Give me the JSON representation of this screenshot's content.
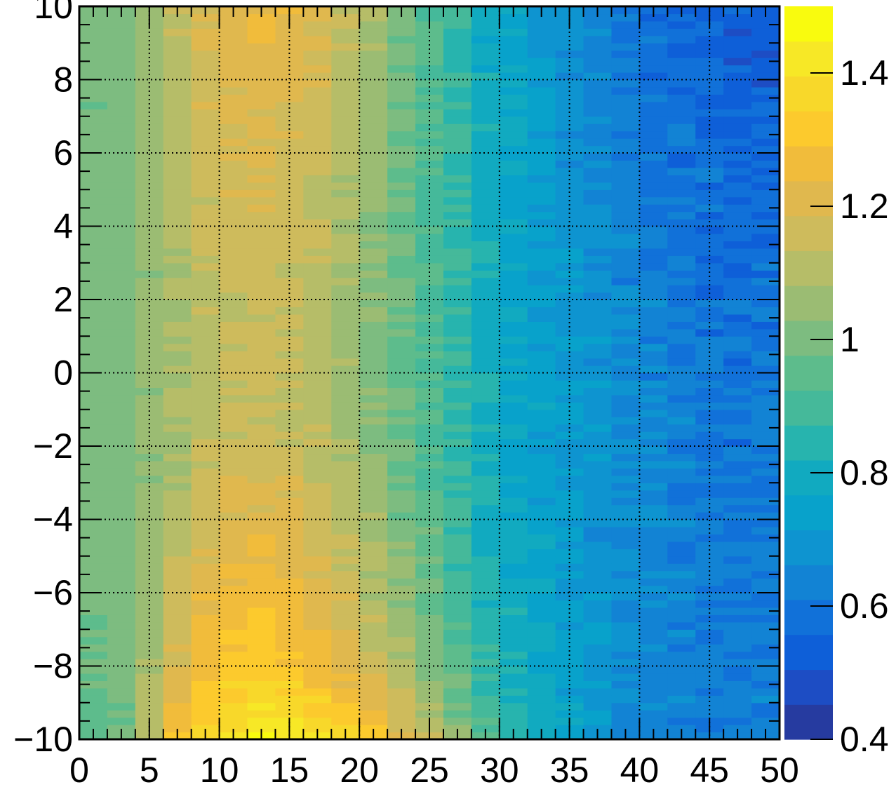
{
  "chart_data": {
    "type": "heatmap",
    "title": "",
    "xlabel": "",
    "ylabel": "",
    "xlim": [
      0,
      50
    ],
    "ylim": [
      -10,
      10
    ],
    "x_ticks": [
      0,
      5,
      10,
      15,
      20,
      25,
      30,
      35,
      40,
      45,
      50
    ],
    "y_ticks": [
      -10,
      -8,
      -6,
      -4,
      -2,
      0,
      2,
      4,
      6,
      8,
      10
    ],
    "x_tick_labels": [
      "0",
      "5",
      "10",
      "15",
      "20",
      "25",
      "30",
      "35",
      "40",
      "45",
      "50"
    ],
    "y_tick_labels": [
      "−10",
      "−8",
      "−6",
      "−4",
      "−2",
      "0",
      "2",
      "4",
      "6",
      "8",
      "10"
    ],
    "grid": true,
    "colorbar": {
      "zlim": [
        0.4,
        1.5
      ],
      "ticks": [
        0.4,
        0.6,
        0.8,
        1.0,
        1.2,
        1.4
      ],
      "tick_labels": [
        "0.4",
        "0.6",
        "0.8",
        "1",
        "1.2",
        "1.4"
      ],
      "palette": [
        "#263ba0",
        "#1d4dc4",
        "#0e5fd8",
        "#1171d9",
        "#1283d4",
        "#0e94d0",
        "#08a2cb",
        "#11aac0",
        "#27b4ae",
        "#45b99a",
        "#5dbc8c",
        "#7dbc80",
        "#9bbc73",
        "#b6bd68",
        "#cebb5c",
        "#e0b84e",
        "#f1bc3b",
        "#fcca2d",
        "#f8d82a",
        "#f7e826",
        "#f9fb0e"
      ]
    },
    "x_bin_width": 2,
    "y_bin_width": 0.2,
    "value_profile": {
      "x_centers": [
        1,
        3,
        5,
        7,
        9,
        11,
        13,
        15,
        17,
        19,
        21,
        23,
        25,
        27,
        29,
        31,
        33,
        35,
        37,
        39,
        41,
        43,
        45,
        47,
        49
      ],
      "y_rows": [
        -9.9,
        -9.0,
        -8.0,
        -7.0,
        -6.0,
        -5.0,
        -4.0,
        -3.0,
        -2.0,
        0.0,
        2.0,
        4.0,
        6.0,
        8.0,
        9.9
      ],
      "values": [
        [
          0.96,
          0.98,
          1.12,
          1.28,
          1.37,
          1.42,
          1.44,
          1.43,
          1.4,
          1.36,
          1.3,
          1.22,
          1.14,
          1.04,
          0.94,
          0.86,
          0.8,
          0.75,
          0.7,
          0.66,
          0.64,
          0.62,
          0.62,
          0.62,
          0.62
        ],
        [
          0.96,
          0.99,
          1.1,
          1.24,
          1.32,
          1.36,
          1.38,
          1.37,
          1.33,
          1.28,
          1.22,
          1.14,
          1.06,
          0.97,
          0.89,
          0.83,
          0.78,
          0.74,
          0.7,
          0.67,
          0.65,
          0.63,
          0.62,
          0.62,
          0.62
        ],
        [
          0.97,
          0.99,
          1.08,
          1.2,
          1.28,
          1.32,
          1.33,
          1.31,
          1.27,
          1.22,
          1.16,
          1.09,
          1.02,
          0.94,
          0.87,
          0.81,
          0.77,
          0.73,
          0.7,
          0.67,
          0.65,
          0.63,
          0.62,
          0.62,
          0.62
        ],
        [
          0.98,
          1.0,
          1.06,
          1.17,
          1.25,
          1.29,
          1.3,
          1.28,
          1.24,
          1.19,
          1.13,
          1.06,
          0.99,
          0.92,
          0.85,
          0.8,
          0.76,
          0.73,
          0.7,
          0.67,
          0.65,
          0.63,
          0.62,
          0.61,
          0.61
        ],
        [
          0.99,
          1.0,
          1.05,
          1.14,
          1.22,
          1.26,
          1.27,
          1.25,
          1.21,
          1.16,
          1.1,
          1.04,
          0.97,
          0.9,
          0.84,
          0.79,
          0.75,
          0.72,
          0.69,
          0.67,
          0.65,
          0.63,
          0.62,
          0.61,
          0.61
        ],
        [
          1.0,
          1.01,
          1.05,
          1.12,
          1.19,
          1.23,
          1.24,
          1.22,
          1.18,
          1.13,
          1.08,
          1.02,
          0.96,
          0.89,
          0.83,
          0.78,
          0.75,
          0.72,
          0.69,
          0.67,
          0.65,
          0.63,
          0.62,
          0.61,
          0.61
        ],
        [
          1.0,
          1.01,
          1.04,
          1.1,
          1.16,
          1.2,
          1.21,
          1.2,
          1.16,
          1.11,
          1.06,
          1.0,
          0.95,
          0.88,
          0.82,
          0.78,
          0.74,
          0.71,
          0.69,
          0.67,
          0.65,
          0.63,
          0.62,
          0.61,
          0.61
        ],
        [
          1.01,
          1.01,
          1.04,
          1.09,
          1.14,
          1.18,
          1.19,
          1.18,
          1.14,
          1.1,
          1.05,
          0.99,
          0.94,
          0.88,
          0.82,
          0.77,
          0.74,
          0.71,
          0.69,
          0.67,
          0.65,
          0.63,
          0.62,
          0.61,
          0.6
        ],
        [
          1.01,
          1.01,
          1.04,
          1.08,
          1.12,
          1.15,
          1.16,
          1.15,
          1.12,
          1.08,
          1.03,
          0.98,
          0.93,
          0.87,
          0.81,
          0.77,
          0.74,
          0.71,
          0.69,
          0.67,
          0.65,
          0.63,
          0.61,
          0.6,
          0.6
        ],
        [
          1.01,
          1.01,
          1.04,
          1.08,
          1.11,
          1.13,
          1.14,
          1.13,
          1.1,
          1.06,
          1.02,
          0.97,
          0.92,
          0.86,
          0.8,
          0.77,
          0.74,
          0.71,
          0.69,
          0.66,
          0.64,
          0.62,
          0.6,
          0.59,
          0.59
        ],
        [
          1.01,
          1.01,
          1.04,
          1.08,
          1.12,
          1.14,
          1.15,
          1.14,
          1.11,
          1.07,
          1.02,
          0.97,
          0.92,
          0.86,
          0.8,
          0.76,
          0.73,
          0.71,
          0.68,
          0.65,
          0.63,
          0.61,
          0.59,
          0.58,
          0.58
        ],
        [
          1.0,
          1.01,
          1.05,
          1.1,
          1.14,
          1.16,
          1.17,
          1.16,
          1.13,
          1.09,
          1.04,
          0.98,
          0.92,
          0.86,
          0.8,
          0.76,
          0.73,
          0.7,
          0.67,
          0.64,
          0.62,
          0.6,
          0.58,
          0.57,
          0.57
        ],
        [
          0.99,
          1.0,
          1.05,
          1.11,
          1.16,
          1.18,
          1.19,
          1.18,
          1.15,
          1.11,
          1.05,
          0.99,
          0.93,
          0.86,
          0.8,
          0.76,
          0.72,
          0.69,
          0.66,
          0.63,
          0.6,
          0.58,
          0.57,
          0.56,
          0.56
        ],
        [
          0.99,
          1.0,
          1.05,
          1.12,
          1.18,
          1.2,
          1.21,
          1.2,
          1.17,
          1.12,
          1.06,
          1.0,
          0.93,
          0.86,
          0.79,
          0.75,
          0.71,
          0.68,
          0.65,
          0.62,
          0.59,
          0.57,
          0.55,
          0.54,
          0.54
        ],
        [
          0.99,
          1.0,
          1.06,
          1.13,
          1.19,
          1.22,
          1.24,
          1.23,
          1.19,
          1.14,
          1.07,
          1.0,
          0.93,
          0.86,
          0.79,
          0.74,
          0.7,
          0.67,
          0.64,
          0.61,
          0.58,
          0.56,
          0.54,
          0.53,
          0.53
        ]
      ]
    }
  }
}
